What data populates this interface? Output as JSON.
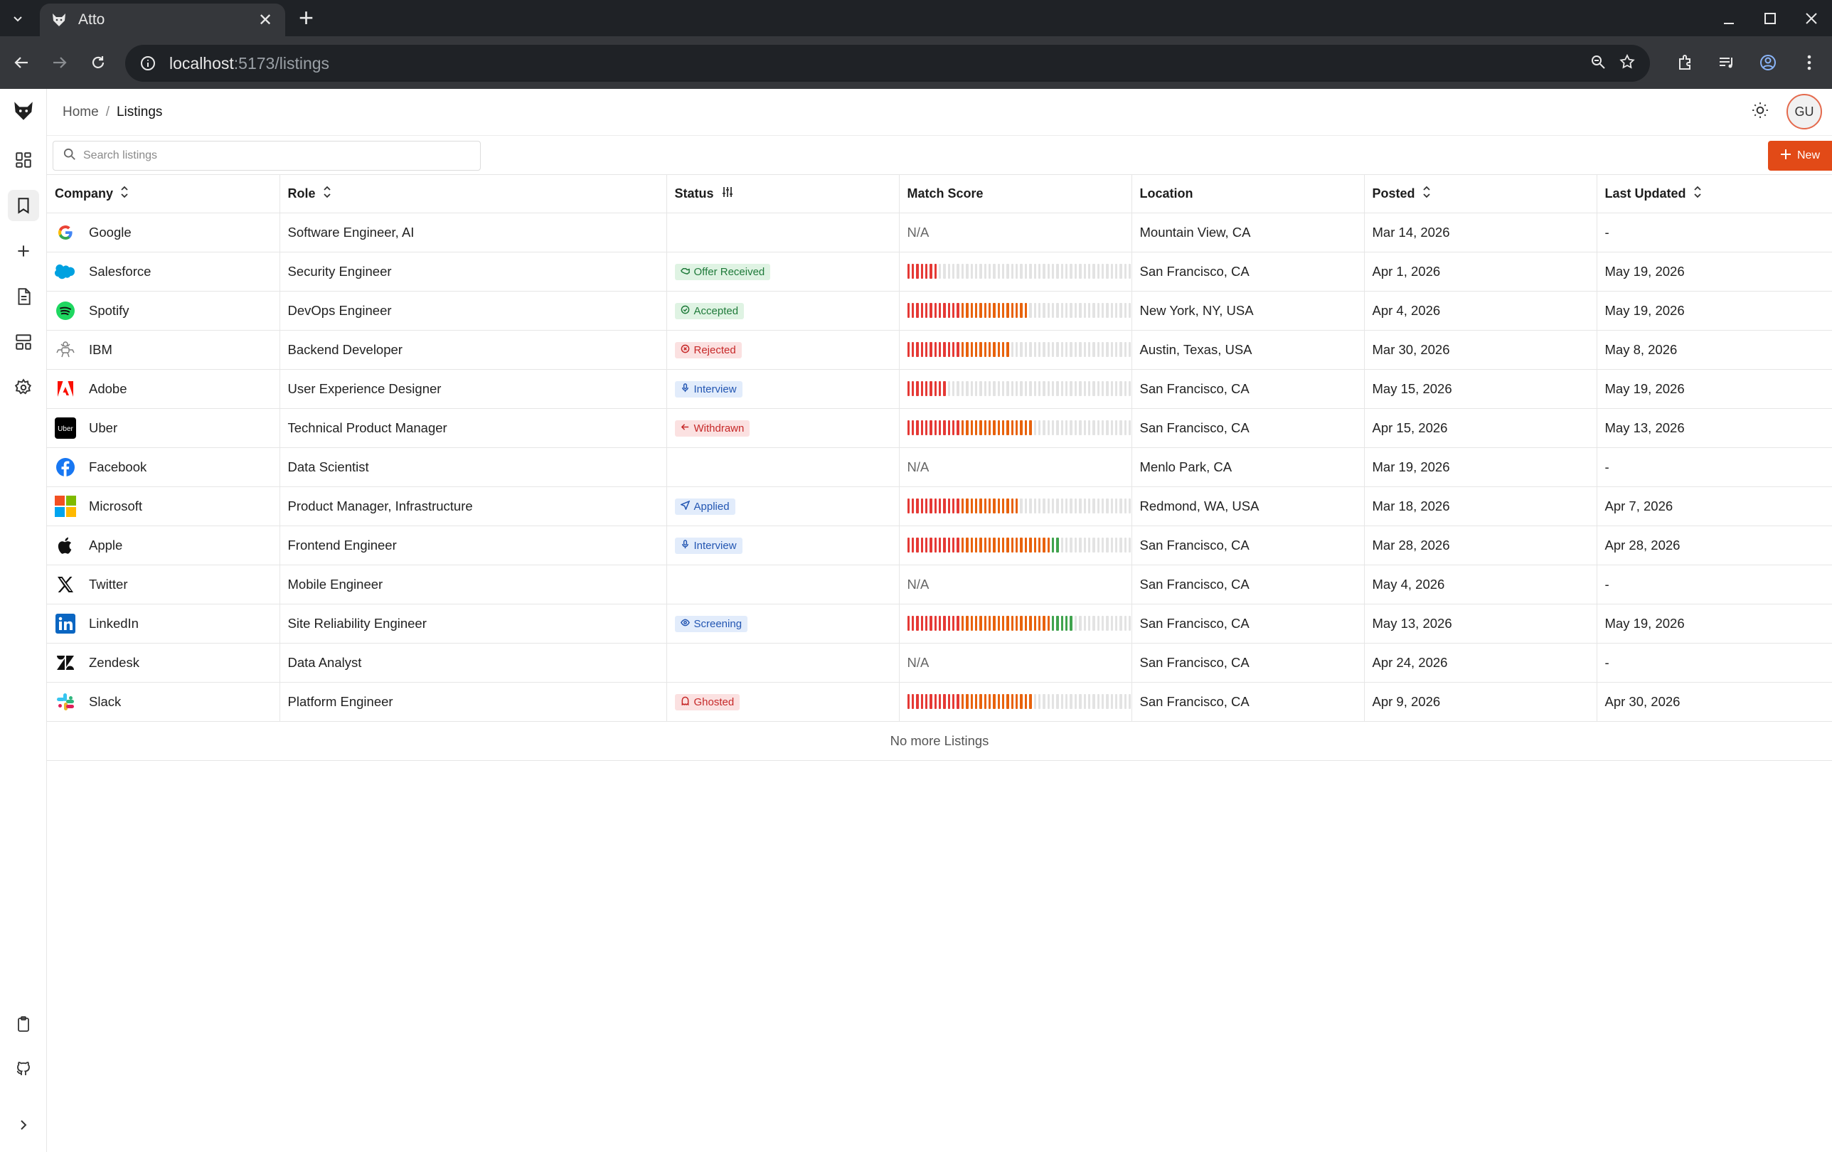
{
  "browser": {
    "tab_title": "Atto",
    "url_host": "localhost",
    "url_path": ":5173/listings"
  },
  "app": {
    "breadcrumb": {
      "home": "Home",
      "current": "Listings"
    },
    "avatar_initials": "GU",
    "search_placeholder": "Search listings",
    "new_button_label": "New",
    "nav_icons": [
      "dashboard-icon",
      "bookmark-icon",
      "plus-icon",
      "document-icon",
      "layout-icon",
      "settings-icon"
    ],
    "bottom_icons": [
      "clipboard-icon",
      "github-icon",
      "chevron-right-icon"
    ]
  },
  "table": {
    "columns": [
      "Company",
      "Role",
      "Status",
      "Match Score",
      "Location",
      "Posted",
      "Last Updated"
    ],
    "rows": [
      {
        "company": "Google",
        "logo": "google",
        "role": "Software Engineer, AI",
        "status": "",
        "status_kind": "",
        "score": null,
        "location": "Mountain View, CA",
        "posted": "Mar 14, 2026",
        "updated": "-"
      },
      {
        "company": "Salesforce",
        "logo": "salesforce",
        "role": "Security Engineer",
        "status": "Offer Received",
        "status_kind": "green",
        "score": 0.13,
        "location": "San Francisco, CA",
        "posted": "Apr 1, 2026",
        "updated": "May 19, 2026"
      },
      {
        "company": "Spotify",
        "logo": "spotify",
        "role": "DevOps Engineer",
        "status": "Accepted",
        "status_kind": "green",
        "score": 0.53,
        "location": "New York, NY, USA",
        "posted": "Apr 4, 2026",
        "updated": "May 19, 2026"
      },
      {
        "company": "IBM",
        "logo": "ibm",
        "role": "Backend Developer",
        "status": "Rejected",
        "status_kind": "red",
        "score": 0.45,
        "location": "Austin, Texas, USA",
        "posted": "Mar 30, 2026",
        "updated": "May 8, 2026"
      },
      {
        "company": "Adobe",
        "logo": "adobe",
        "role": "User Experience Designer",
        "status": "Interview",
        "status_kind": "blue",
        "score": 0.18,
        "location": "San Francisco, CA",
        "posted": "May 15, 2026",
        "updated": "May 19, 2026"
      },
      {
        "company": "Uber",
        "logo": "uber",
        "role": "Technical Product Manager",
        "status": "Withdrawn",
        "status_kind": "red",
        "score": 0.55,
        "location": "San Francisco, CA",
        "posted": "Apr 15, 2026",
        "updated": "May 13, 2026"
      },
      {
        "company": "Facebook",
        "logo": "facebook",
        "role": "Data Scientist",
        "status": "",
        "status_kind": "",
        "score": null,
        "location": "Menlo Park, CA",
        "posted": "Mar 19, 2026",
        "updated": "-"
      },
      {
        "company": "Microsoft",
        "logo": "microsoft",
        "role": "Product Manager, Infrastructure",
        "status": "Applied",
        "status_kind": "blue",
        "score": 0.5,
        "location": "Redmond, WA, USA",
        "posted": "Mar 18, 2026",
        "updated": "Apr 7, 2026"
      },
      {
        "company": "Apple",
        "logo": "apple",
        "role": "Frontend Engineer",
        "status": "Interview",
        "status_kind": "blue",
        "score": 0.68,
        "location": "San Francisco, CA",
        "posted": "Mar 28, 2026",
        "updated": "Apr 28, 2026"
      },
      {
        "company": "Twitter",
        "logo": "twitter",
        "role": "Mobile Engineer",
        "status": "",
        "status_kind": "",
        "score": null,
        "location": "San Francisco, CA",
        "posted": "May 4, 2026",
        "updated": "-"
      },
      {
        "company": "LinkedIn",
        "logo": "linkedin",
        "role": "Site Reliability Engineer",
        "status": "Screening",
        "status_kind": "blue",
        "score": 0.73,
        "location": "San Francisco, CA",
        "posted": "May 13, 2026",
        "updated": "May 19, 2026"
      },
      {
        "company": "Zendesk",
        "logo": "zendesk",
        "role": "Data Analyst",
        "status": "",
        "status_kind": "",
        "score": null,
        "location": "San Francisco, CA",
        "posted": "Apr 24, 2026",
        "updated": "-"
      },
      {
        "company": "Slack",
        "logo": "slack",
        "role": "Platform Engineer",
        "status": "Ghosted",
        "status_kind": "red",
        "score": 0.55,
        "location": "San Francisco, CA",
        "posted": "Apr 9, 2026",
        "updated": "Apr 30, 2026"
      }
    ],
    "na_label": "N/A",
    "footer": "No more Listings"
  },
  "colors": {
    "accent": "#e24a17",
    "score_red": "#e53935",
    "score_orange": "#e8620c",
    "score_green": "#3fa34d",
    "score_empty": "#e3e3e3"
  }
}
